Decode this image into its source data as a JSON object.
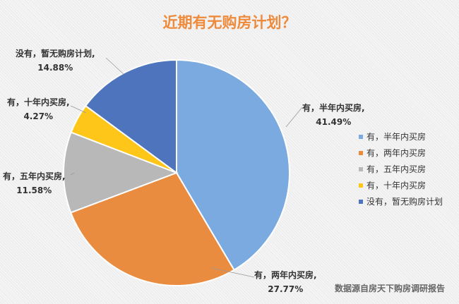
{
  "chart_data": {
    "type": "pie",
    "title": "近期有无购房计划？",
    "categories": [
      "有，半年内买房",
      "有，两年内买房",
      "有，五年内买房",
      "有，十年内买房",
      "没有，暂无购房计划"
    ],
    "values": [
      41.49,
      27.77,
      11.58,
      4.27,
      14.88
    ],
    "data_labels": [
      {
        "name": "有，半年内买房,",
        "value": "41.49%"
      },
      {
        "name": "有，两年内买房,",
        "value": "27.77%"
      },
      {
        "name": "有，五年内买房,",
        "value": "11.58%"
      },
      {
        "name": "有，十年内买房,",
        "value": "4.27%"
      },
      {
        "name": "没有，暂无购房计划,",
        "value": "14.88%"
      }
    ],
    "colors": [
      "#7aaadf",
      "#ea8c3f",
      "#b8b8b8",
      "#ffc61a",
      "#4d74bd"
    ],
    "legend_position": "right",
    "start_angle": "top, clockwise"
  },
  "source": "数据源自房天下购房调研报告"
}
